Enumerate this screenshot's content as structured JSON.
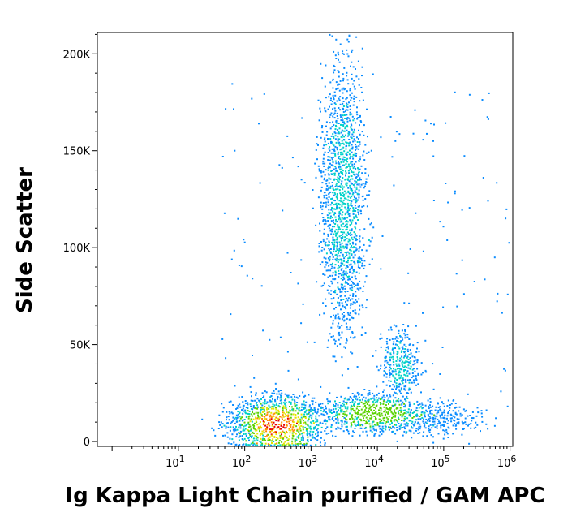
{
  "chart_data": {
    "type": "scatter",
    "style": "density-dot-plot",
    "xlabel": "Ig Kappa Light Chain purified / GAM APC",
    "ylabel": "Side Scatter",
    "xscale": "log",
    "xlim": [
      0.6,
      1100000
    ],
    "ylim": [
      -2500,
      211000
    ],
    "grid": false,
    "legend": "none",
    "x_ticks": [
      {
        "value": 10,
        "base": "10",
        "exp": "1"
      },
      {
        "value": 100,
        "base": "10",
        "exp": "2"
      },
      {
        "value": 1000,
        "base": "10",
        "exp": "3"
      },
      {
        "value": 10000,
        "base": "10",
        "exp": "4"
      },
      {
        "value": 100000,
        "base": "10",
        "exp": "5"
      },
      {
        "value": 1000000,
        "base": "10",
        "exp": "6"
      }
    ],
    "y_ticks": [
      {
        "value": 0,
        "label": "0"
      },
      {
        "value": 50000,
        "label": "50K"
      },
      {
        "value": 100000,
        "label": "100K"
      },
      {
        "value": 150000,
        "label": "150K"
      },
      {
        "value": 200000,
        "label": "200K"
      }
    ],
    "density_colors": [
      "#0000ff",
      "#0a8cff",
      "#00d2c8",
      "#5ad200",
      "#e6e600",
      "#ff8c00",
      "#e60000"
    ],
    "populations": [
      {
        "name_hidden": true,
        "center_x": 300,
        "center_y": 9000,
        "spread_log_x": 0.28,
        "spread_y": 6000,
        "count": 5500,
        "peak_level": 6
      },
      {
        "name_hidden": true,
        "center_x": 3000,
        "center_y": 125000,
        "spread_log_x": 0.14,
        "spread_y": 30000,
        "count": 3200,
        "peak_level": 2
      },
      {
        "name_hidden": true,
        "center_x": 8000,
        "center_y": 15000,
        "spread_log_x": 0.3,
        "spread_y": 4000,
        "count": 2600,
        "peak_level": 3
      },
      {
        "name_hidden": true,
        "center_x": 22000,
        "center_y": 40000,
        "spread_log_x": 0.12,
        "spread_y": 8000,
        "count": 700,
        "peak_level": 2
      },
      {
        "name_hidden": true,
        "center_x": 60000,
        "center_y": 12000,
        "spread_log_x": 0.35,
        "spread_y": 4000,
        "count": 600,
        "peak_level": 1
      }
    ]
  }
}
